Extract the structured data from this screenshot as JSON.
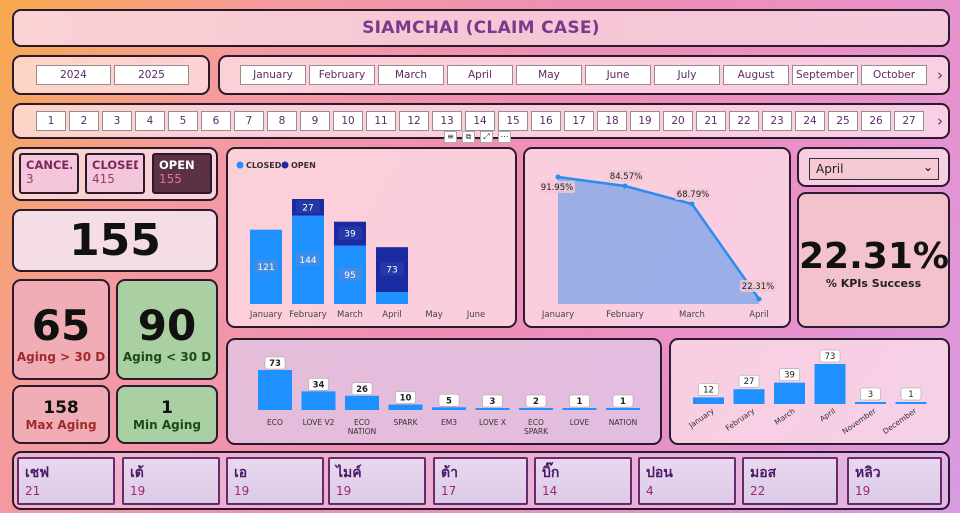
{
  "title": "SIAMCHAI (CLAIM CASE)",
  "years": [
    "2024",
    "2025"
  ],
  "months": [
    "January",
    "February",
    "March",
    "April",
    "May",
    "June",
    "July",
    "August",
    "September",
    "October"
  ],
  "days": [
    "1",
    "2",
    "3",
    "4",
    "5",
    "6",
    "7",
    "8",
    "9",
    "10",
    "11",
    "12",
    "13",
    "14",
    "15",
    "16",
    "17",
    "18",
    "19",
    "20",
    "21",
    "22",
    "23",
    "24",
    "25",
    "26",
    "27"
  ],
  "status_cards": [
    {
      "label": "CANCE...",
      "value": "3"
    },
    {
      "label": "CLOSED",
      "value": "415"
    },
    {
      "label": "OPEN",
      "value": "155"
    }
  ],
  "total_open": "155",
  "aging_over": {
    "value": "65",
    "label": "Aging > 30 D"
  },
  "aging_under": {
    "value": "90",
    "label": "Aging < 30 D"
  },
  "max_aging": {
    "value": "158",
    "label": "Max Aging"
  },
  "min_aging": {
    "value": "1",
    "label": "Min Aging"
  },
  "month_select": {
    "value": "April"
  },
  "kpi": {
    "value": "22.31%",
    "label": "% KPIs Success"
  },
  "colors": {
    "closed": "#1e90ff",
    "open": "#1a2aa0",
    "line": "#2a8cf0",
    "area": "#8aa8e8"
  },
  "chart_data": [
    {
      "type": "bar",
      "legend": [
        "CLOSED",
        "OPEN"
      ],
      "legend_position": "top-left",
      "categories": [
        "January",
        "February",
        "March",
        "April",
        "May",
        "June"
      ],
      "series": [
        {
          "name": "CLOSED",
          "values": [
            121,
            144,
            95,
            null,
            null,
            null
          ],
          "labels": [
            "121",
            "144",
            "95",
            "",
            "",
            ""
          ]
        },
        {
          "name": "OPEN",
          "values": [
            null,
            27,
            39,
            73,
            null,
            null
          ],
          "labels": [
            "",
            "27",
            "39",
            "73",
            "",
            ""
          ]
        }
      ]
    },
    {
      "type": "area",
      "categories": [
        "January",
        "February",
        "March",
        "April"
      ],
      "values": [
        91.95,
        84.57,
        68.79,
        22.31
      ],
      "labels": [
        "91.95%",
        "84.57%",
        "68.79%",
        "22.31%"
      ]
    },
    {
      "type": "bar",
      "categories": [
        "ECO",
        "LOVE V2",
        "ECO NATION",
        "SPARK",
        "EM3",
        "LOVE X",
        "ECO SPARK",
        "LOVE",
        "NATION"
      ],
      "values": [
        73,
        34,
        26,
        10,
        5,
        3,
        2,
        1,
        1
      ]
    },
    {
      "type": "bar",
      "categories": [
        "January",
        "February",
        "March",
        "April",
        "November",
        "December"
      ],
      "values": [
        12,
        27,
        39,
        73,
        3,
        1
      ]
    }
  ],
  "salespeople": [
    {
      "name": "เชฟ",
      "count": "21"
    },
    {
      "name": "เต้",
      "count": "19"
    },
    {
      "name": "เอ",
      "count": "19"
    },
    {
      "name": "ไมค์",
      "count": "19"
    },
    {
      "name": "ต้า",
      "count": "17"
    },
    {
      "name": "บิ๊ก",
      "count": "14"
    },
    {
      "name": "ปอน",
      "count": "4"
    },
    {
      "name": "มอส",
      "count": "22"
    },
    {
      "name": "หลิว",
      "count": "19"
    }
  ]
}
